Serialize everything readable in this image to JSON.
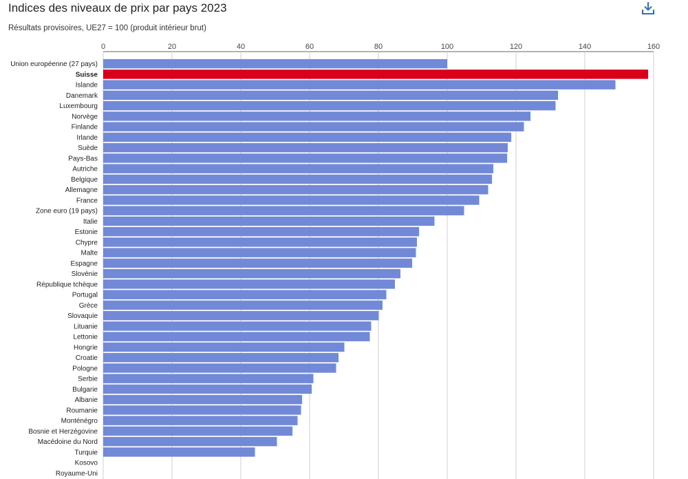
{
  "header": {
    "title": "Indices des niveaux de prix par pays 2023",
    "subtitle": "Résultats provisoires, UE27 = 100 (produit intérieur brut)",
    "download_icon": "download-icon"
  },
  "colors": {
    "bar": "#7189d6",
    "highlight": "#d9001b",
    "grid": "#cfcfcf",
    "axis": "#666666"
  },
  "chart_data": {
    "type": "bar",
    "orientation": "horizontal",
    "title": "Indices des niveaux de prix par pays 2023",
    "subtitle": "Résultats provisoires, UE27 = 100 (produit intérieur brut)",
    "xlim": [
      0,
      160
    ],
    "xticks": [
      0,
      20,
      40,
      60,
      80,
      100,
      120,
      140,
      160
    ],
    "grid": true,
    "axis_position": "top",
    "highlight": "Suisse",
    "categories": [
      "Union européenne (27 pays)",
      "Suisse",
      "Islande",
      "Danemark",
      "Luxembourg",
      "Norvège",
      "Finlande",
      "Irlande",
      "Suède",
      "Pays-Bas",
      "Autriche",
      "Belgique",
      "Allemagne",
      "France",
      "Zone euro (19 pays)",
      "Italie",
      "Estonie",
      "Chypre",
      "Malte",
      "Espagne",
      "Slovénie",
      "République tchèque",
      "Portugal",
      "Grèce",
      "Slovaquie",
      "Lituanie",
      "Lettonie",
      "Hongrie",
      "Croatie",
      "Pologne",
      "Serbie",
      "Bulgarie",
      "Albanie",
      "Roumanie",
      "Monténégro",
      "Bosnie et Herzégovine",
      "Macédoine du Nord",
      "Turquie",
      "Kosovo",
      "Royaume-Uni"
    ],
    "values": [
      100,
      158.4,
      148.9,
      132.2,
      131.5,
      124.2,
      122.3,
      118.6,
      117.6,
      117.4,
      113.4,
      113.0,
      111.9,
      109.3,
      104.9,
      96.3,
      91.8,
      91.2,
      90.9,
      89.8,
      86.4,
      84.8,
      82.3,
      81.2,
      80.1,
      77.9,
      77.5,
      70.1,
      68.4,
      67.7,
      61.1,
      60.6,
      57.8,
      57.5,
      56.5,
      55.0,
      50.5,
      44.1,
      null,
      null
    ]
  }
}
